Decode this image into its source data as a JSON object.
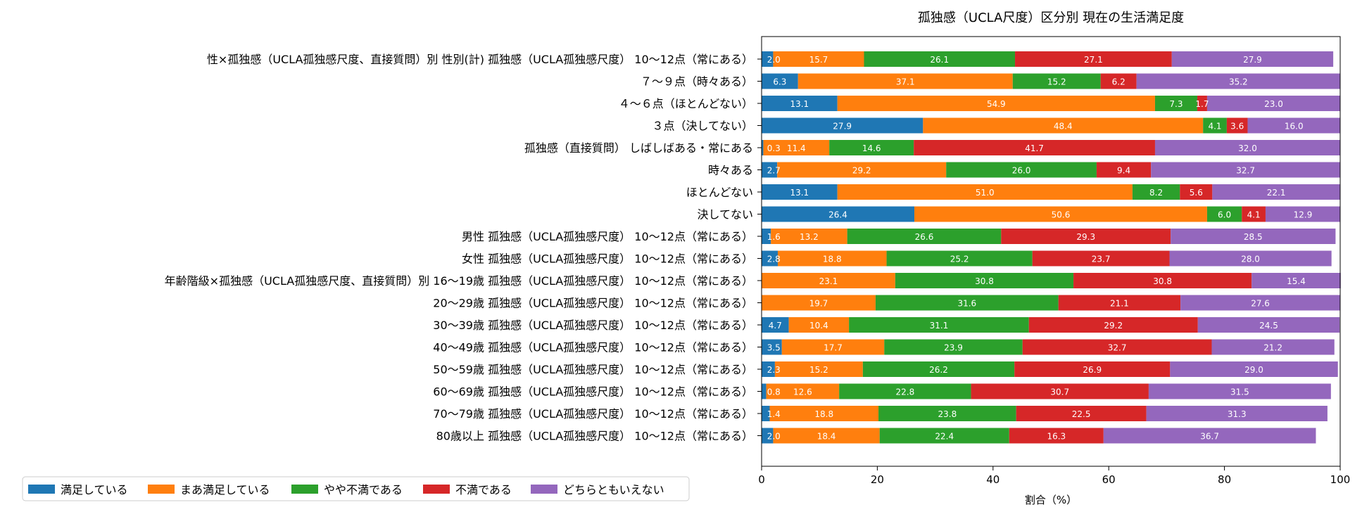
{
  "chart_data": {
    "type": "bar",
    "orientation": "horizontal",
    "stacked": true,
    "title": "孤独感（UCLA尺度）区分別 現在の生活満足度",
    "xlabel": "割合（%）",
    "ylabel": "",
    "xlim": [
      0,
      100
    ],
    "xticks": [
      0,
      20,
      40,
      60,
      80,
      100
    ],
    "grid": false,
    "legend_position": "bottom-right",
    "categories": [
      "性×孤独感（UCLA孤独感尺度、直接質問）別 性別(計) 孤独感（UCLA孤独感尺度） 10～12点（常にある）",
      "７～９点（時々ある）",
      "４～６点（ほとんどない）",
      "３点（決してない）",
      "孤独感（直接質問） しばしばある・常にある",
      "時々ある",
      "ほとんどない",
      "決してない",
      "男性 孤独感（UCLA孤独感尺度） 10～12点（常にある）",
      "女性 孤独感（UCLA孤独感尺度） 10～12点（常にある）",
      "年齢階級×孤独感（UCLA孤独感尺度、直接質問）別 16～19歳 孤独感（UCLA孤独感尺度） 10～12点（常にある）",
      "20～29歳 孤独感（UCLA孤独感尺度） 10～12点（常にある）",
      "30～39歳 孤独感（UCLA孤独感尺度） 10～12点（常にある）",
      "40～49歳 孤独感（UCLA孤独感尺度） 10～12点（常にある）",
      "50～59歳 孤独感（UCLA孤独感尺度） 10～12点（常にある）",
      "60～69歳 孤独感（UCLA孤独感尺度） 10～12点（常にある）",
      "70～79歳 孤独感（UCLA孤独感尺度） 10～12点（常にある）",
      "80歳以上 孤独感（UCLA孤独感尺度） 10～12点（常にある）"
    ],
    "series": [
      {
        "name": "満足している",
        "color": "#1f77b4",
        "values": [
          2.0,
          6.3,
          13.1,
          27.9,
          0.3,
          2.7,
          13.1,
          26.4,
          1.6,
          2.8,
          0,
          0,
          4.7,
          3.5,
          2.3,
          0.8,
          1.4,
          2.0
        ]
      },
      {
        "name": "まあ満足している",
        "color": "#ff7f0e",
        "values": [
          15.7,
          37.1,
          54.9,
          48.4,
          11.4,
          29.2,
          51.0,
          50.6,
          13.2,
          18.8,
          23.1,
          19.7,
          10.4,
          17.7,
          15.2,
          12.6,
          18.8,
          18.4
        ]
      },
      {
        "name": "やや不満である",
        "color": "#2ca02c",
        "values": [
          26.1,
          15.2,
          7.3,
          4.1,
          14.6,
          26.0,
          8.2,
          6.0,
          26.6,
          25.2,
          30.8,
          31.6,
          31.1,
          23.9,
          26.2,
          22.8,
          23.8,
          22.4
        ]
      },
      {
        "name": "不満である",
        "color": "#d62728",
        "values": [
          27.1,
          6.2,
          1.7,
          3.6,
          41.7,
          9.4,
          5.6,
          4.1,
          29.3,
          23.7,
          30.8,
          21.1,
          29.2,
          32.7,
          26.9,
          30.7,
          22.5,
          16.3
        ]
      },
      {
        "name": "どちらともいえない",
        "color": "#9467bd",
        "values": [
          27.9,
          35.2,
          23.0,
          16.0,
          32.0,
          32.7,
          22.1,
          12.9,
          28.5,
          28.0,
          15.4,
          27.6,
          24.5,
          21.2,
          29.0,
          31.5,
          31.3,
          36.7
        ]
      }
    ]
  }
}
